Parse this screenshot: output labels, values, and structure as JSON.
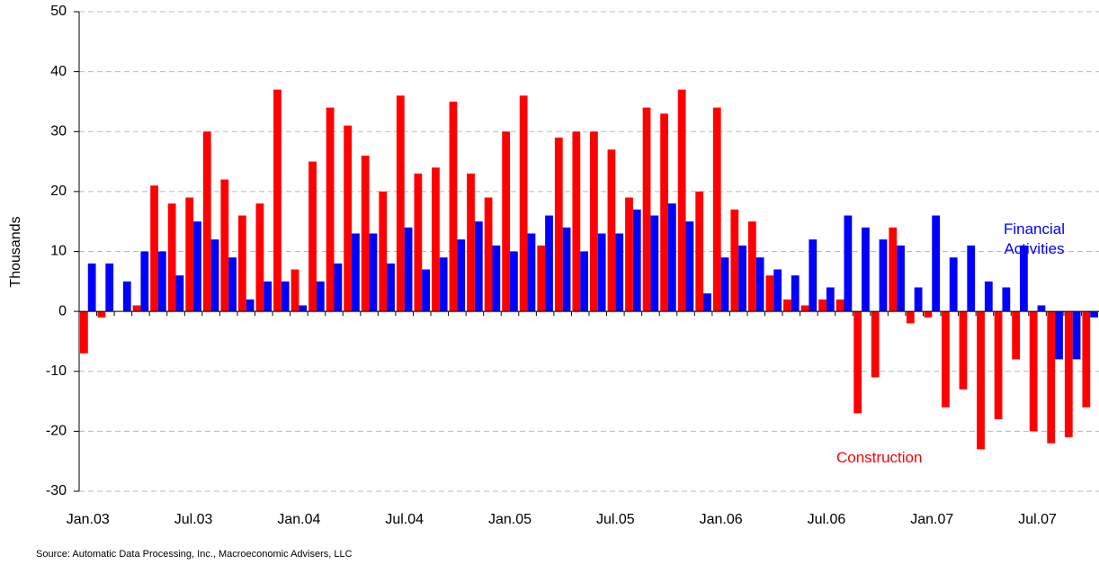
{
  "chart_data": {
    "type": "bar",
    "ylabel": "Thousands",
    "source": "Source: Automatic Data Processing, Inc., Macroeconomic Advisers, LLC",
    "categories": [
      "Jan.03",
      null,
      null,
      null,
      null,
      null,
      "Jul.03",
      null,
      null,
      null,
      null,
      null,
      "Jan.04",
      null,
      null,
      null,
      null,
      null,
      "Jul.04",
      null,
      null,
      null,
      null,
      null,
      "Jan.05",
      null,
      null,
      null,
      null,
      null,
      "Jul.05",
      null,
      null,
      null,
      null,
      null,
      "Jan.06",
      null,
      null,
      null,
      null,
      null,
      "Jul.06",
      null,
      null,
      null,
      null,
      null,
      "Jan.07",
      null,
      null,
      null,
      null,
      null,
      "Jul.07",
      null,
      null,
      null
    ],
    "series": [
      {
        "name": "Construction",
        "color": "#ff0000",
        "values": [
          -7,
          -1,
          0,
          1,
          21,
          18,
          19,
          30,
          22,
          16,
          18,
          37,
          7,
          25,
          34,
          31,
          26,
          20,
          36,
          23,
          24,
          35,
          23,
          19,
          30,
          36,
          11,
          29,
          30,
          30,
          27,
          19,
          34,
          33,
          37,
          20,
          34,
          17,
          15,
          6,
          2,
          1,
          2,
          2,
          -17,
          -11,
          14,
          -2,
          -1,
          -16,
          -13,
          -23,
          -18,
          -8,
          -20,
          -22,
          -21,
          -16
        ]
      },
      {
        "name": "Financial Activities",
        "color": "#0000ff",
        "values": [
          8,
          8,
          5,
          10,
          10,
          6,
          15,
          12,
          9,
          2,
          5,
          5,
          1,
          5,
          8,
          13,
          13,
          8,
          14,
          7,
          9,
          12,
          15,
          11,
          10,
          13,
          16,
          14,
          10,
          13,
          13,
          17,
          16,
          18,
          15,
          3,
          9,
          11,
          9,
          7,
          6,
          12,
          4,
          16,
          14,
          12,
          11,
          4,
          16,
          9,
          11,
          5,
          4,
          11,
          1,
          -8,
          -8,
          -1
        ]
      }
    ],
    "ylim": [
      -30,
      50
    ],
    "yticks": [
      -30,
      -20,
      -10,
      0,
      10,
      20,
      30,
      40,
      50
    ],
    "grid": true
  }
}
